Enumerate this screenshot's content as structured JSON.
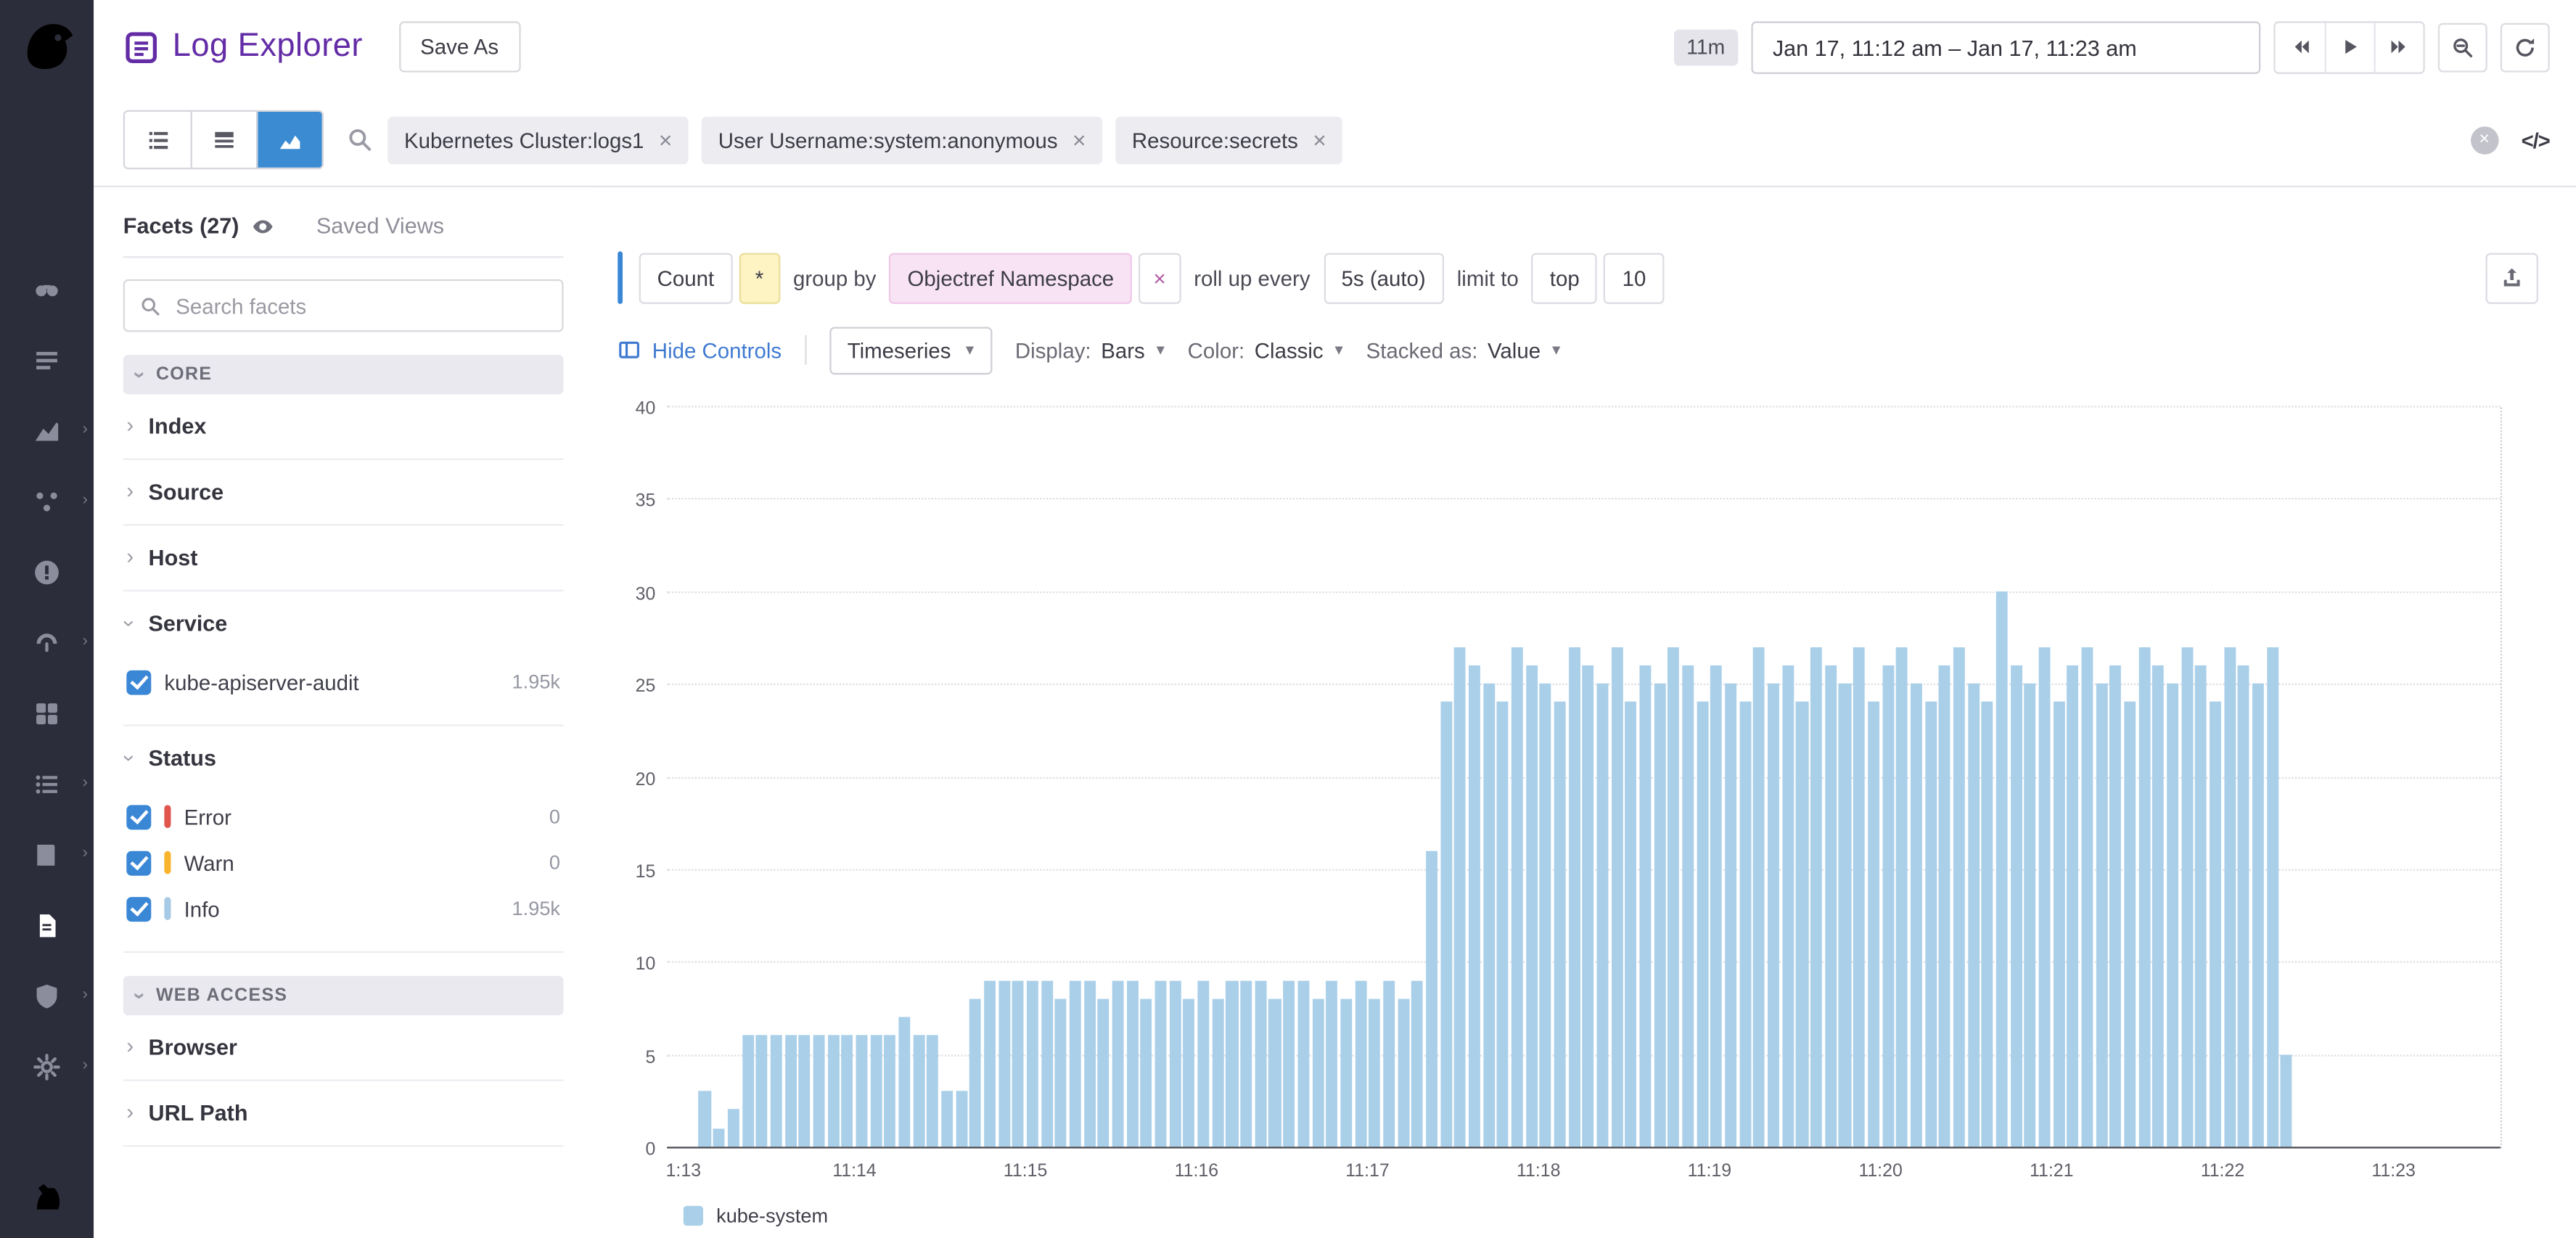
{
  "header": {
    "title": "Log Explorer",
    "save_as_label": "Save As",
    "duration_badge": "11m",
    "time_range": "Jan 17, 11:12 am – Jan 17, 11:23 am"
  },
  "toolbar": {
    "pills": [
      "Kubernetes Cluster:logs1",
      "User Username:system:anonymous",
      "Resource:secrets"
    ],
    "raw_toggle_label": "</>"
  },
  "nav": {
    "items": [
      {
        "name": "watchdog",
        "chevron": false,
        "active": false
      },
      {
        "name": "events",
        "chevron": false,
        "active": false
      },
      {
        "name": "metrics",
        "chevron": true,
        "active": false
      },
      {
        "name": "apm",
        "chevron": true,
        "active": false
      },
      {
        "name": "error-tracking",
        "chevron": false,
        "active": false
      },
      {
        "name": "synthetics",
        "chevron": true,
        "active": false
      },
      {
        "name": "dashboards",
        "chevron": false,
        "active": false
      },
      {
        "name": "infrastructure",
        "chevron": true,
        "active": false
      },
      {
        "name": "notebooks",
        "chevron": true,
        "active": false
      },
      {
        "name": "logs",
        "chevron": false,
        "active": true
      },
      {
        "name": "security",
        "chevron": true,
        "active": false
      },
      {
        "name": "settings",
        "chevron": true,
        "active": false
      }
    ]
  },
  "facets": {
    "tab_facets": "Facets (27)",
    "tab_saved_views": "Saved Views",
    "search_placeholder": "Search facets",
    "groups": [
      {
        "type": "header",
        "label": "CORE"
      },
      {
        "type": "facet",
        "label": "Index",
        "expanded": false
      },
      {
        "type": "facet",
        "label": "Source",
        "expanded": false
      },
      {
        "type": "facet",
        "label": "Host",
        "expanded": false
      },
      {
        "type": "facet",
        "label": "Service",
        "expanded": true,
        "items": [
          {
            "label": "kube-apiserver-audit",
            "count": "1.95k",
            "checked": true,
            "color": ""
          }
        ]
      },
      {
        "type": "facet",
        "label": "Status",
        "expanded": true,
        "items": [
          {
            "label": "Error",
            "count": "0",
            "checked": true,
            "color": "#e0564d"
          },
          {
            "label": "Warn",
            "count": "0",
            "checked": true,
            "color": "#f9b42d"
          },
          {
            "label": "Info",
            "count": "1.95k",
            "checked": true,
            "color": "#a6c9e5"
          }
        ]
      },
      {
        "type": "header",
        "label": "WEB ACCESS"
      },
      {
        "type": "facet",
        "label": "Browser",
        "expanded": false
      },
      {
        "type": "facet",
        "label": "URL Path",
        "expanded": false
      }
    ]
  },
  "query": {
    "measure": "Count",
    "star": "*",
    "group_by_label": "group by",
    "group_by_value": "Objectref Namespace",
    "remove_group_by": "×",
    "rollup_label": "roll up every",
    "rollup_value": "5s (auto)",
    "limit_label": "limit to",
    "limit_mode": "top",
    "limit_value": "10"
  },
  "controls": {
    "hide_controls": "Hide Controls",
    "viz_type": "Timeseries",
    "display_label": "Display:",
    "display_value": "Bars",
    "color_label": "Color:",
    "color_value": "Classic",
    "stacked_label": "Stacked as:",
    "stacked_value": "Value"
  },
  "chart_data": {
    "type": "bar",
    "title": "",
    "xlabel": "",
    "ylabel": "",
    "ylim": [
      0,
      40
    ],
    "yticks": [
      0,
      5,
      10,
      15,
      20,
      25,
      30,
      35,
      40
    ],
    "grid": "dotted-horizontal",
    "legend_position": "bottom-left",
    "bucket_seconds": 5,
    "x_labels": [
      "1:13",
      "11:14",
      "11:15",
      "11:16",
      "11:17",
      "11:18",
      "11:19",
      "11:20",
      "11:21",
      "11:22",
      "11:23"
    ],
    "series": [
      {
        "name": "kube-system",
        "color": "#a9cfe9",
        "values": [
          0,
          3,
          1,
          2,
          6,
          6,
          6,
          6,
          6,
          6,
          6,
          6,
          6,
          6,
          6,
          7,
          6,
          6,
          3,
          3,
          8,
          9,
          9,
          9,
          9,
          9,
          8,
          9,
          9,
          8,
          9,
          9,
          8,
          9,
          9,
          8,
          9,
          8,
          9,
          9,
          9,
          8,
          9,
          9,
          8,
          9,
          8,
          9,
          8,
          9,
          8,
          9,
          16,
          24,
          27,
          26,
          25,
          24,
          27,
          26,
          25,
          24,
          27,
          26,
          25,
          27,
          24,
          26,
          25,
          27,
          26,
          24,
          26,
          25,
          24,
          27,
          25,
          26,
          24,
          27,
          26,
          25,
          27,
          24,
          26,
          27,
          25,
          24,
          26,
          27,
          25,
          24,
          30,
          26,
          25,
          27,
          24,
          26,
          27,
          25,
          26,
          24,
          27,
          26,
          25,
          27,
          26,
          24,
          27,
          26,
          25,
          27,
          5,
          0,
          0,
          0,
          0,
          0,
          0,
          0
        ]
      }
    ]
  },
  "colors": {
    "accent_blue": "#3a8bd2",
    "brand_purple": "#632ca6",
    "bar_fill": "#a9cfe9",
    "star_bg": "#fdf3c3",
    "group_pill_bg": "#f8e3f4",
    "error": "#e0564d",
    "warn": "#f9b42d",
    "info": "#a6c9e5"
  }
}
